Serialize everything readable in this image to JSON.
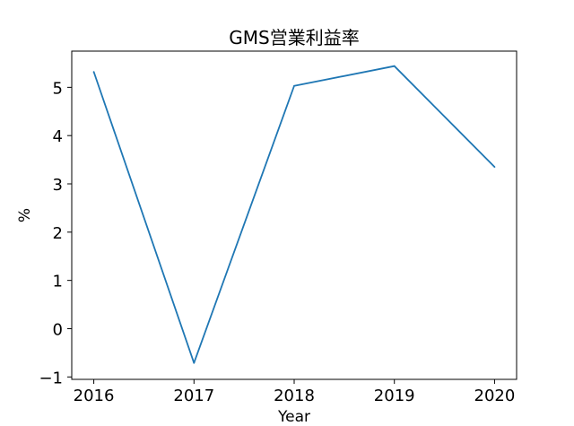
{
  "chart_data": {
    "type": "line",
    "title": "GMS営業利益率",
    "xlabel": "Year",
    "ylabel": "%",
    "x": [
      2016,
      2017,
      2018,
      2019,
      2020
    ],
    "x_tick_labels": [
      "2016",
      "2017",
      "2018",
      "2019",
      "2020"
    ],
    "y_ticks": [
      -1,
      0,
      1,
      2,
      3,
      4,
      5
    ],
    "y_tick_labels": [
      "−1",
      "0",
      "1",
      "2",
      "3",
      "4",
      "5"
    ],
    "xlim": [
      2015.78,
      2020.22
    ],
    "ylim": [
      -1.05,
      5.75
    ],
    "grid": false,
    "series": [
      {
        "values": [
          5.32,
          -0.71,
          5.03,
          5.44,
          3.35
        ],
        "color": "#1f77b4"
      }
    ]
  }
}
